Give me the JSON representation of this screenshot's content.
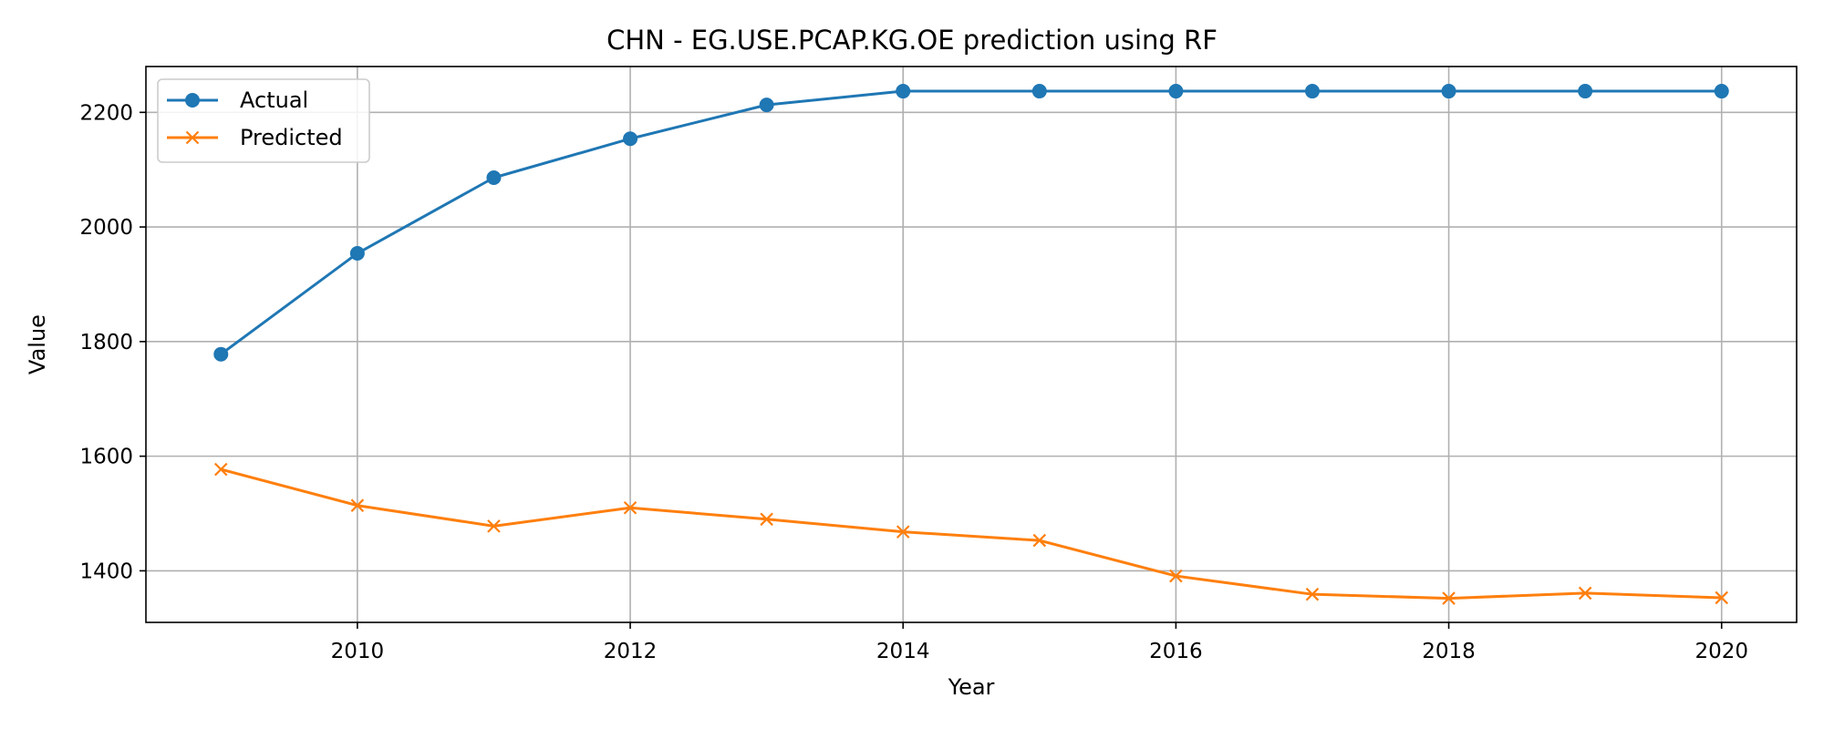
{
  "chart_data": {
    "type": "line",
    "title": "CHN - EG.USE.PCAP.KG.OE prediction using RF",
    "xlabel": "Year",
    "ylabel": "Value",
    "x": [
      2009,
      2010,
      2011,
      2012,
      2013,
      2014,
      2015,
      2016,
      2017,
      2018,
      2019,
      2020
    ],
    "xlim": [
      2008.45,
      2020.55
    ],
    "ylim": [
      1310,
      2280
    ],
    "xticks": [
      2010,
      2012,
      2014,
      2016,
      2018,
      2020
    ],
    "yticks": [
      1400,
      1600,
      1800,
      2000,
      2200
    ],
    "grid": true,
    "legend_position": "upper left",
    "series": [
      {
        "name": "Actual",
        "color": "#1f77b4",
        "marker": "circle",
        "values": [
          1778,
          1954,
          2086,
          2154,
          2213,
          2237,
          2237,
          2237,
          2237,
          2237,
          2237,
          2237
        ]
      },
      {
        "name": "Predicted",
        "color": "#ff7f0e",
        "marker": "x",
        "values": [
          1577,
          1514,
          1478,
          1510,
          1490,
          1468,
          1453,
          1391,
          1359,
          1352,
          1361,
          1353
        ]
      }
    ]
  }
}
